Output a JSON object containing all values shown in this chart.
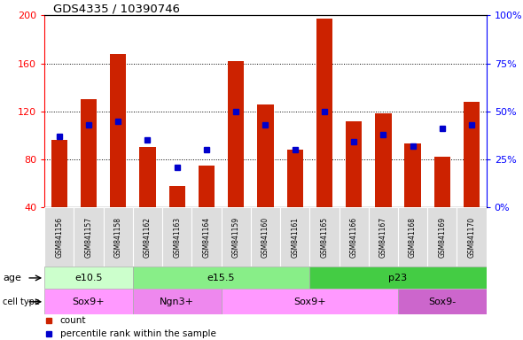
{
  "title": "GDS4335 / 10390746",
  "samples": [
    "GSM841156",
    "GSM841157",
    "GSM841158",
    "GSM841162",
    "GSM841163",
    "GSM841164",
    "GSM841159",
    "GSM841160",
    "GSM841161",
    "GSM841165",
    "GSM841166",
    "GSM841167",
    "GSM841168",
    "GSM841169",
    "GSM841170"
  ],
  "counts": [
    96,
    130,
    168,
    90,
    58,
    75,
    162,
    126,
    88,
    197,
    112,
    118,
    93,
    82,
    128
  ],
  "percentile_ranks": [
    37,
    43,
    45,
    35,
    21,
    30,
    50,
    43,
    30,
    50,
    34,
    38,
    32,
    41,
    43
  ],
  "ylim_left": [
    40,
    200
  ],
  "ylim_right": [
    0,
    100
  ],
  "yticks_left": [
    40,
    80,
    120,
    160,
    200
  ],
  "yticks_right": [
    0,
    25,
    50,
    75,
    100
  ],
  "age_groups": [
    {
      "label": "e10.5",
      "start": 0,
      "end": 3,
      "color": "#ccffcc"
    },
    {
      "label": "e15.5",
      "start": 3,
      "end": 9,
      "color": "#88ee88"
    },
    {
      "label": "p23",
      "start": 9,
      "end": 15,
      "color": "#44cc44"
    }
  ],
  "cell_type_groups": [
    {
      "label": "Sox9+",
      "start": 0,
      "end": 3,
      "color": "#ff99ff"
    },
    {
      "label": "Ngn3+",
      "start": 3,
      "end": 6,
      "color": "#ee88ee"
    },
    {
      "label": "Sox9+",
      "start": 6,
      "end": 12,
      "color": "#ff99ff"
    },
    {
      "label": "Sox9-",
      "start": 12,
      "end": 15,
      "color": "#cc66cc"
    }
  ],
  "bar_color": "#cc2200",
  "percentile_color": "#0000cc",
  "grid_color": "#555555",
  "bar_width": 0.55,
  "marker_size": 4
}
